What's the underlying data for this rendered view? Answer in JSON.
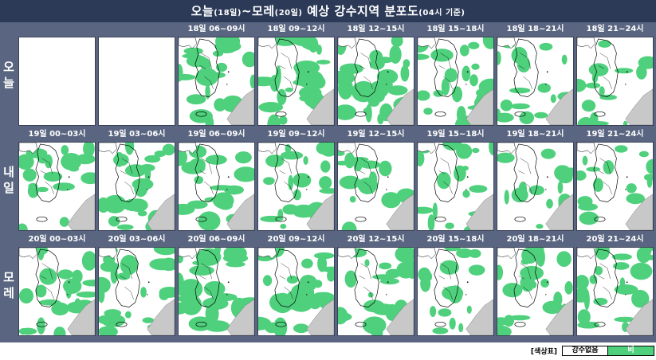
{
  "title": {
    "part1": "오늘",
    "part1_sub": "(18일)",
    "sep": "~",
    "part2": "모레",
    "part2_sub": "(20일)",
    "main": " 예상 강수지역 분포도",
    "basis": "(04시 기준)"
  },
  "rows": [
    {
      "label_chars": [
        "오",
        "늘"
      ],
      "panels": [
        {
          "time": "",
          "empty": true,
          "rain": 0
        },
        {
          "time": "",
          "empty": true,
          "rain": 0
        },
        {
          "time": "18일 06~09시",
          "empty": false,
          "rain": 0.55
        },
        {
          "time": "18일 09~12시",
          "empty": false,
          "rain": 0.6
        },
        {
          "time": "18일 12~15시",
          "empty": false,
          "rain": 0.6
        },
        {
          "time": "18일 15~18시",
          "empty": false,
          "rain": 0.5
        },
        {
          "time": "18일 18~21시",
          "empty": false,
          "rain": 0.3
        },
        {
          "time": "18일 21~24시",
          "empty": false,
          "rain": 0.3
        }
      ]
    },
    {
      "label_chars": [
        "내",
        "일"
      ],
      "panels": [
        {
          "time": "19일 00~03시",
          "empty": false,
          "rain": 0.35
        },
        {
          "time": "19일 03~06시",
          "empty": false,
          "rain": 0.4
        },
        {
          "time": "19일 06~09시",
          "empty": false,
          "rain": 0.45
        },
        {
          "time": "19일 09~12시",
          "empty": false,
          "rain": 0.4
        },
        {
          "time": "19일 12~15시",
          "empty": false,
          "rain": 0.3
        },
        {
          "time": "19일 15~18시",
          "empty": false,
          "rain": 0.35
        },
        {
          "time": "19일 18~21시",
          "empty": false,
          "rain": 0.25
        },
        {
          "time": "19일 21~24시",
          "empty": false,
          "rain": 0.25
        }
      ]
    },
    {
      "label_chars": [
        "모",
        "레"
      ],
      "panels": [
        {
          "time": "20일 00~03시",
          "empty": false,
          "rain": 0.45
        },
        {
          "time": "20일 03~06시",
          "empty": false,
          "rain": 0.5
        },
        {
          "time": "20일 06~09시",
          "empty": false,
          "rain": 0.55
        },
        {
          "time": "20일 09~12시",
          "empty": false,
          "rain": 0.55
        },
        {
          "time": "20일 12~15시",
          "empty": false,
          "rain": 0.45
        },
        {
          "time": "20일 15~18시",
          "empty": false,
          "rain": 0.4
        },
        {
          "time": "20일 18~21시",
          "empty": false,
          "rain": 0.45
        },
        {
          "time": "20일 21~24시",
          "empty": false,
          "rain": 0.5
        }
      ]
    }
  ],
  "legend": {
    "title": "[색상표]",
    "none_label": "강수없음",
    "rain_label": "비"
  },
  "colors": {
    "rain": "#4ed07c",
    "land": "#ffffff",
    "neighbor_land": "#c8c8c8",
    "header_bg": "#2c3a58",
    "grid_bg": "#5a6681"
  }
}
